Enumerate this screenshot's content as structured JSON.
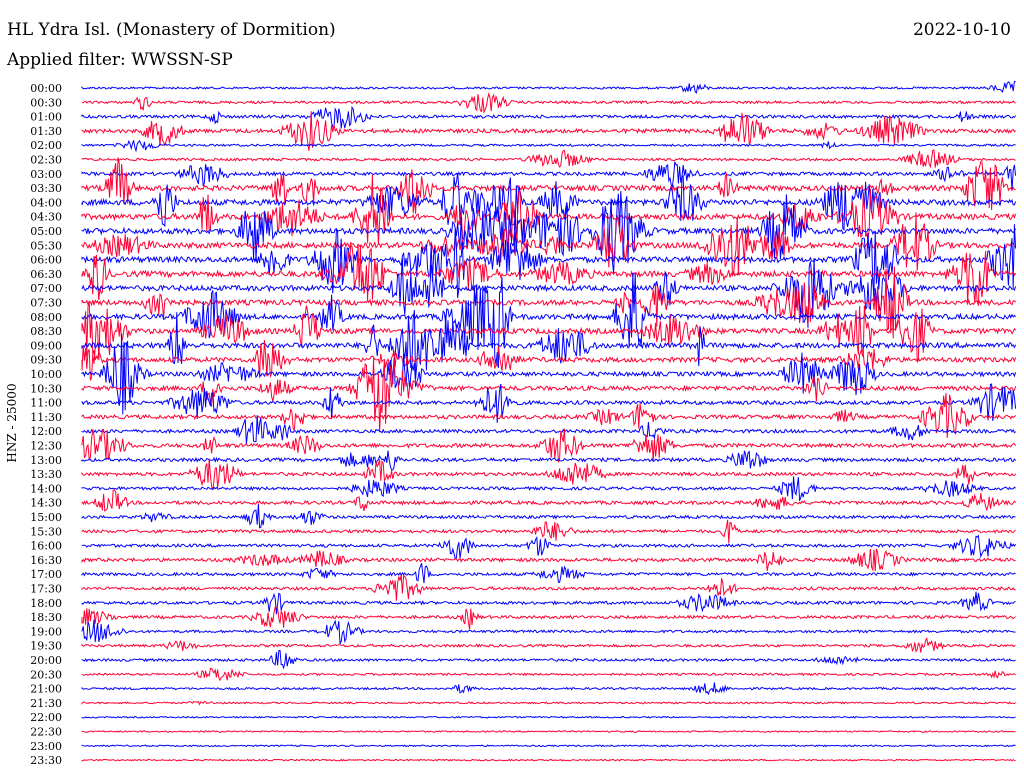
{
  "header": {
    "station": "HL Ydra Isl. (Monastery of Dormition)",
    "date": "2022-10-10",
    "filter": "Applied filter: WWSSN-SP"
  },
  "channel_label": "HNZ - 25000",
  "colors": {
    "blue_trace": "#0000ff",
    "red_trace": "#ff0033"
  },
  "chart_data": {
    "type": "line",
    "title": "HL Ydra Isl. (Monastery of Dormition)",
    "subtitle": "Applied filter: WWSSN-SP",
    "ylabel": "HNZ - 25000",
    "row_labels": [
      "00:00",
      "00:30",
      "01:00",
      "01:30",
      "02:00",
      "02:30",
      "03:00",
      "03:30",
      "04:00",
      "04:30",
      "05:00",
      "05:30",
      "06:00",
      "06:30",
      "07:00",
      "07:30",
      "08:00",
      "08:30",
      "09:00",
      "09:30",
      "10:00",
      "10:30",
      "11:00",
      "11:30",
      "12:00",
      "12:30",
      "13:00",
      "13:30",
      "14:00",
      "14:30",
      "15:00",
      "15:30",
      "16:00",
      "16:30",
      "17:00",
      "17:30",
      "18:00",
      "18:30",
      "19:00",
      "19:30",
      "20:00",
      "20:30",
      "21:00",
      "21:30",
      "22:00",
      "22:30",
      "23:00",
      "23:30"
    ],
    "row_colors": [
      "blue",
      "red"
    ],
    "activity_level": [
      0.2,
      0.3,
      0.4,
      0.6,
      0.2,
      0.3,
      0.5,
      0.9,
      1.0,
      1.0,
      1.0,
      1.0,
      1.0,
      1.0,
      0.9,
      0.9,
      0.9,
      0.9,
      0.9,
      0.8,
      0.7,
      0.7,
      0.6,
      0.6,
      0.5,
      0.6,
      0.5,
      0.5,
      0.4,
      0.5,
      0.4,
      0.4,
      0.4,
      0.5,
      0.4,
      0.4,
      0.4,
      0.4,
      0.3,
      0.3,
      0.3,
      0.2,
      0.2,
      0.1,
      0.05,
      0.05,
      0.05,
      0.05
    ]
  }
}
